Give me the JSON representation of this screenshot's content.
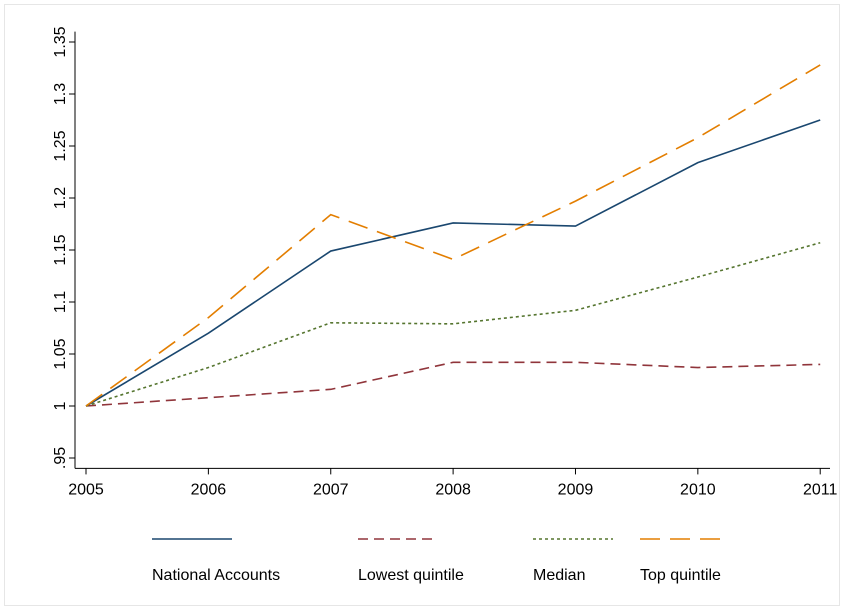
{
  "chart_data": {
    "type": "line",
    "x": [
      2005,
      2006,
      2007,
      2008,
      2009,
      2010,
      2011
    ],
    "series": [
      {
        "name": "National Accounts",
        "color": "#1a476f",
        "values": [
          1,
          1.07,
          1.149,
          1.176,
          1.173,
          1.234,
          1.275
        ]
      },
      {
        "name": "Lowest quintile",
        "color": "#90353b",
        "values": [
          1,
          1.008,
          1.016,
          1.042,
          1.042,
          1.037,
          1.04
        ]
      },
      {
        "name": "Median",
        "color": "#55752f",
        "values": [
          1,
          1.037,
          1.08,
          1.079,
          1.092,
          1.124,
          1.157
        ]
      },
      {
        "name": "Top quintile",
        "color": "#e37e00",
        "values": [
          1,
          1.085,
          1.184,
          1.141,
          1.197,
          1.258,
          1.328
        ]
      }
    ],
    "xlim": [
      2004.91,
      2011.08
    ],
    "xticks": [
      2005,
      2006,
      2007,
      2008,
      2009,
      2010,
      2011
    ],
    "ylim": [
      0.94,
      1.36
    ],
    "yticks": [
      {
        "value": 0.95,
        "label": ".95"
      },
      1,
      1.05,
      1.1,
      1.15,
      1.2,
      1.25,
      1.3,
      1.35
    ],
    "legend": "bottom"
  }
}
